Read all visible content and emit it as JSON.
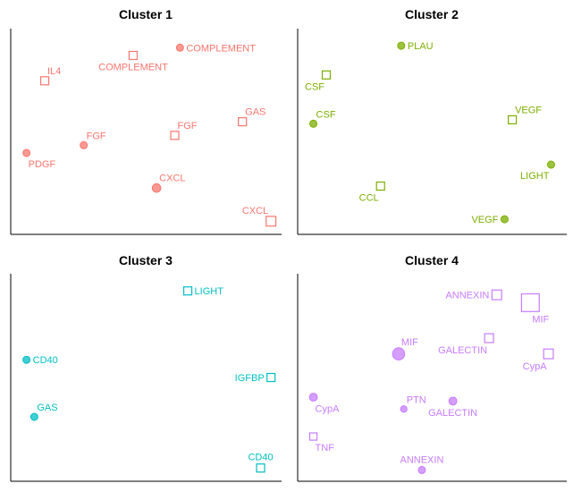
{
  "chart_data": [
    {
      "type": "scatter",
      "title": "Cluster 1",
      "color": "#F8766D",
      "points": [
        {
          "label": "COMPLEMENT",
          "shape": "circle",
          "x": 0.63,
          "y": 0.93,
          "size": 1,
          "label_pos": "right"
        },
        {
          "label": "COMPLEMENT",
          "shape": "square",
          "x": 0.45,
          "y": 0.89,
          "size": 1,
          "label_pos": "below"
        },
        {
          "label": "IL4",
          "shape": "square",
          "x": 0.11,
          "y": 0.76,
          "size": 1,
          "label_pos": "above-right"
        },
        {
          "label": "GAS",
          "shape": "square",
          "x": 0.87,
          "y": 0.55,
          "size": 1,
          "label_pos": "above-right"
        },
        {
          "label": "FGF",
          "shape": "square",
          "x": 0.61,
          "y": 0.48,
          "size": 1,
          "label_pos": "above-right"
        },
        {
          "label": "FGF",
          "shape": "circle",
          "x": 0.26,
          "y": 0.43,
          "size": 1,
          "label_pos": "above-right"
        },
        {
          "label": "PDGF",
          "shape": "circle",
          "x": 0.04,
          "y": 0.39,
          "size": 1,
          "label_pos": "below-right"
        },
        {
          "label": "CXCL",
          "shape": "circle",
          "x": 0.54,
          "y": 0.21,
          "size": 1.2,
          "label_pos": "above-right"
        },
        {
          "label": "CXCL",
          "shape": "square",
          "x": 0.98,
          "y": 0.04,
          "size": 1.2,
          "label_pos": "above-left"
        }
      ]
    },
    {
      "type": "scatter",
      "title": "Cluster 2",
      "color": "#7CAE00",
      "points": [
        {
          "label": "PLAU",
          "shape": "circle",
          "x": 0.38,
          "y": 0.94,
          "size": 1,
          "label_pos": "right"
        },
        {
          "label": "CSF",
          "shape": "square",
          "x": 0.09,
          "y": 0.79,
          "size": 1,
          "label_pos": "below-left"
        },
        {
          "label": "CSF",
          "shape": "circle",
          "x": 0.04,
          "y": 0.54,
          "size": 1,
          "label_pos": "above-right"
        },
        {
          "label": "VEGF",
          "shape": "square",
          "x": 0.81,
          "y": 0.56,
          "size": 1,
          "label_pos": "above-right"
        },
        {
          "label": "LIGHT",
          "shape": "circle",
          "x": 0.96,
          "y": 0.33,
          "size": 1,
          "label_pos": "below-left"
        },
        {
          "label": "CCL",
          "shape": "square",
          "x": 0.3,
          "y": 0.22,
          "size": 1,
          "label_pos": "below-left"
        },
        {
          "label": "VEGF",
          "shape": "circle",
          "x": 0.78,
          "y": 0.05,
          "size": 1,
          "label_pos": "left"
        }
      ]
    },
    {
      "type": "scatter",
      "title": "Cluster 3",
      "color": "#00BFC4",
      "points": [
        {
          "label": "LIGHT",
          "shape": "square",
          "x": 0.66,
          "y": 0.94,
          "size": 1,
          "label_pos": "right"
        },
        {
          "label": "CD40",
          "shape": "circle",
          "x": 0.04,
          "y": 0.59,
          "size": 1,
          "label_pos": "right"
        },
        {
          "label": "IGFBP",
          "shape": "square",
          "x": 0.98,
          "y": 0.5,
          "size": 1,
          "label_pos": "left"
        },
        {
          "label": "GAS",
          "shape": "circle",
          "x": 0.07,
          "y": 0.3,
          "size": 1,
          "label_pos": "above-right"
        },
        {
          "label": "CD40",
          "shape": "square",
          "x": 0.94,
          "y": 0.04,
          "size": 1,
          "label_pos": "above"
        }
      ]
    },
    {
      "type": "scatter",
      "title": "Cluster 4",
      "color": "#C77CFF",
      "points": [
        {
          "label": "ANNEXIN",
          "shape": "square",
          "x": 0.75,
          "y": 0.92,
          "size": 1.2,
          "label_pos": "left"
        },
        {
          "label": "MIF",
          "shape": "square",
          "x": 0.88,
          "y": 0.88,
          "size": 2.2,
          "label_pos": "below-right"
        },
        {
          "label": "GALECTIN",
          "shape": "square",
          "x": 0.72,
          "y": 0.7,
          "size": 1.1,
          "label_pos": "below-left"
        },
        {
          "label": "MIF",
          "shape": "circle",
          "x": 0.37,
          "y": 0.62,
          "size": 1.7,
          "label_pos": "above-right"
        },
        {
          "label": "CypA",
          "shape": "square",
          "x": 0.95,
          "y": 0.62,
          "size": 1.2,
          "label_pos": "below-left"
        },
        {
          "label": "CypA",
          "shape": "circle",
          "x": 0.04,
          "y": 0.4,
          "size": 1.1,
          "label_pos": "below-right"
        },
        {
          "label": "PTN",
          "shape": "circle",
          "x": 0.39,
          "y": 0.34,
          "size": 0.9,
          "label_pos": "above-right"
        },
        {
          "label": "GALECTIN",
          "shape": "circle",
          "x": 0.58,
          "y": 0.38,
          "size": 1.1,
          "label_pos": "below"
        },
        {
          "label": "TNF",
          "shape": "square",
          "x": 0.04,
          "y": 0.2,
          "size": 0.9,
          "label_pos": "below-right"
        },
        {
          "label": "ANNEXIN",
          "shape": "circle",
          "x": 0.46,
          "y": 0.03,
          "size": 1,
          "label_pos": "above"
        }
      ]
    }
  ]
}
